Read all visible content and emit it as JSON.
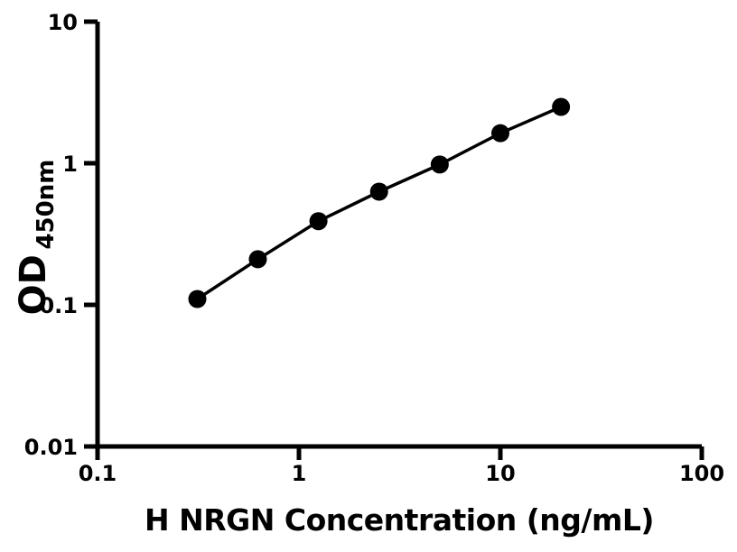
{
  "chart_data": {
    "type": "line",
    "x": [
      0.313,
      0.625,
      1.25,
      2.5,
      5,
      10,
      20
    ],
    "y": [
      0.11,
      0.21,
      0.39,
      0.63,
      0.98,
      1.63,
      2.5
    ],
    "xlabel": "H NRGN Concentration (ng/mL)",
    "ylabel": "OD450nm",
    "ylabel_main": "OD",
    "ylabel_sub": "450nm",
    "x_scale": "log",
    "y_scale": "log",
    "xlim": [
      0.1,
      100
    ],
    "ylim": [
      0.01,
      10
    ],
    "x_tick_labels": [
      "0.1",
      "1",
      "10",
      "100"
    ],
    "y_tick_labels": [
      "10",
      "1",
      "0.1",
      "0.01"
    ],
    "grid": false,
    "legend": "none",
    "line_color": "#000000",
    "marker_color": "#000000",
    "marker_shape": "circle",
    "axis_color": "#000000",
    "background": "#ffffff"
  }
}
